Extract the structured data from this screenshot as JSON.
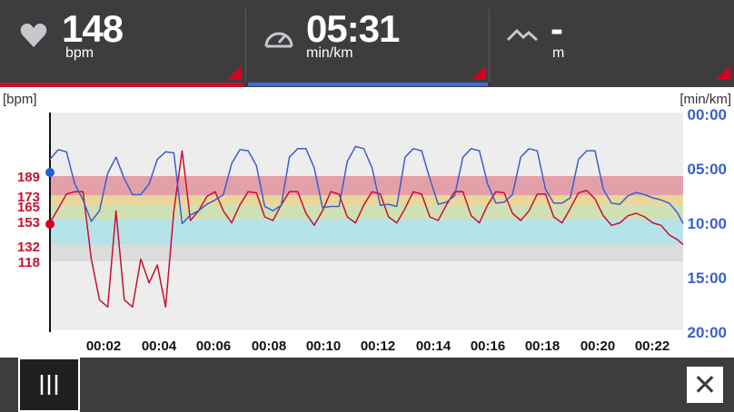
{
  "header": {
    "heart_rate": {
      "icon": "heart-icon",
      "value": "148",
      "unit": "bpm"
    },
    "pace": {
      "icon": "speedometer-icon",
      "value": "05:31",
      "unit": "min/km"
    },
    "elevation": {
      "icon": "mountain-icon",
      "value": "-",
      "unit": "m"
    }
  },
  "colors": {
    "header_bg": "#3d3d40",
    "hr_line": "#c8102e",
    "pace_line": "#3a5fcd",
    "zone_5": "#e3a0a8",
    "zone_4": "#e9d79a",
    "zone_3": "#cfe0b4",
    "zone_2": "#b6e2ea",
    "zone_1": "#dcdcdc"
  },
  "chart": {
    "left_axis_unit": "[bpm]",
    "right_axis_unit": "[min/km]",
    "hr_ticks": [
      "189",
      "173",
      "165",
      "153",
      "132",
      "118"
    ],
    "pace_ticks": [
      "00:00",
      "05:00",
      "10:00",
      "15:00",
      "20:00"
    ],
    "time_ticks": [
      "00:02",
      "00:04",
      "00:06",
      "00:08",
      "00:10",
      "00:12",
      "00:14",
      "00:16",
      "00:18",
      "00:20",
      "00:22"
    ]
  },
  "chart_data": {
    "type": "line",
    "xlabel": "",
    "ylabel": "[bpm]",
    "y2label": "[min/km]",
    "x_ticks": [
      "00:02",
      "00:04",
      "00:06",
      "00:08",
      "00:10",
      "00:12",
      "00:14",
      "00:16",
      "00:18",
      "00:20",
      "00:22"
    ],
    "hr_zones": [
      {
        "from": 118,
        "to": 132
      },
      {
        "from": 132,
        "to": 153
      },
      {
        "from": 153,
        "to": 165
      },
      {
        "from": 165,
        "to": 173
      },
      {
        "from": 173,
        "to": 189
      }
    ],
    "series": [
      {
        "name": "bpm",
        "axis": "left",
        "x": [
          0,
          0.3,
          0.6,
          0.9,
          1.2,
          1.5,
          1.8,
          2.1,
          2.4,
          2.7,
          3.0,
          3.3,
          3.6,
          3.9,
          4.2,
          4.5,
          4.8,
          5.1,
          5.4,
          5.7,
          6.0,
          6.3,
          6.6,
          6.9,
          7.2,
          7.5,
          7.8,
          8.1,
          8.4,
          8.7,
          9.0,
          9.3,
          9.6,
          9.9,
          10.2,
          10.5,
          10.8,
          11.1,
          11.4,
          11.7,
          12.0,
          12.3,
          12.6,
          12.9,
          13.2,
          13.5,
          13.8,
          14.1,
          14.4,
          14.7,
          15.0,
          15.3,
          15.6,
          15.9,
          16.2,
          16.5,
          16.8,
          17.1,
          17.4,
          17.7,
          18.0,
          18.3,
          18.6,
          18.9,
          19.2,
          19.5,
          19.8,
          20.1,
          20.4,
          20.7,
          21.0,
          21.3,
          21.6,
          21.9,
          22.2,
          22.5,
          22.8,
          23.0
        ],
        "values": [
          150,
          162,
          174,
          176,
          176,
          120,
          86,
          80,
          160,
          86,
          80,
          120,
          100,
          115,
          80,
          160,
          210,
          152,
          160,
          172,
          176,
          160,
          150,
          165,
          176,
          175,
          155,
          152,
          165,
          176,
          176,
          158,
          148,
          160,
          176,
          174,
          155,
          150,
          165,
          176,
          174,
          155,
          150,
          162,
          176,
          174,
          155,
          152,
          165,
          176,
          176,
          156,
          150,
          165,
          176,
          175,
          158,
          152,
          160,
          174,
          174,
          155,
          150,
          162,
          175,
          177,
          170,
          156,
          148,
          150,
          156,
          158,
          155,
          150,
          148,
          140,
          136,
          132
        ]
      },
      {
        "name": "min/km",
        "axis": "right",
        "x": [
          0,
          0.3,
          0.6,
          0.9,
          1.2,
          1.5,
          1.8,
          2.1,
          2.4,
          2.7,
          3.0,
          3.3,
          3.6,
          3.9,
          4.2,
          4.5,
          4.8,
          5.1,
          5.4,
          5.7,
          6.0,
          6.3,
          6.6,
          6.9,
          7.2,
          7.5,
          7.8,
          8.1,
          8.4,
          8.7,
          9.0,
          9.3,
          9.6,
          9.9,
          10.2,
          10.5,
          10.8,
          11.1,
          11.4,
          11.7,
          12.0,
          12.3,
          12.6,
          12.9,
          13.2,
          13.5,
          13.8,
          14.1,
          14.4,
          14.7,
          15.0,
          15.3,
          15.6,
          15.9,
          16.2,
          16.5,
          16.8,
          17.1,
          17.4,
          17.7,
          18.0,
          18.3,
          18.6,
          18.9,
          19.2,
          19.5,
          19.8,
          20.1,
          20.4,
          20.7,
          21.0,
          21.3,
          21.6,
          21.9,
          22.2,
          22.5,
          22.8,
          23.0
        ],
        "values": [
          4.2,
          3.3,
          3.5,
          6.5,
          8.0,
          10.0,
          9.0,
          5.5,
          4.0,
          6.0,
          7.5,
          7.5,
          6.5,
          4.2,
          3.5,
          3.6,
          10.2,
          9.4,
          9.0,
          8.4,
          8.0,
          7.5,
          4.6,
          3.3,
          3.4,
          4.8,
          8.6,
          9.0,
          8.5,
          4.0,
          3.2,
          3.2,
          5.0,
          8.7,
          8.6,
          8.6,
          4.4,
          3.0,
          3.2,
          5.0,
          8.5,
          8.4,
          8.6,
          4.0,
          3.2,
          3.4,
          6.0,
          8.4,
          8.2,
          7.6,
          4.0,
          3.2,
          3.4,
          6.5,
          8.3,
          8.2,
          7.5,
          4.0,
          3.2,
          3.4,
          7.0,
          8.3,
          8.3,
          7.8,
          4.2,
          3.4,
          3.4,
          7.0,
          8.3,
          8.4,
          7.6,
          7.3,
          7.5,
          7.8,
          8.0,
          8.3,
          9.2,
          10.2
        ]
      }
    ],
    "left_ticks": [
      189,
      173,
      165,
      153,
      132,
      118
    ],
    "right_ticks": [
      "00:00",
      "05:00",
      "10:00",
      "15:00",
      "20:00"
    ],
    "ylim_right": [
      0,
      20
    ]
  }
}
